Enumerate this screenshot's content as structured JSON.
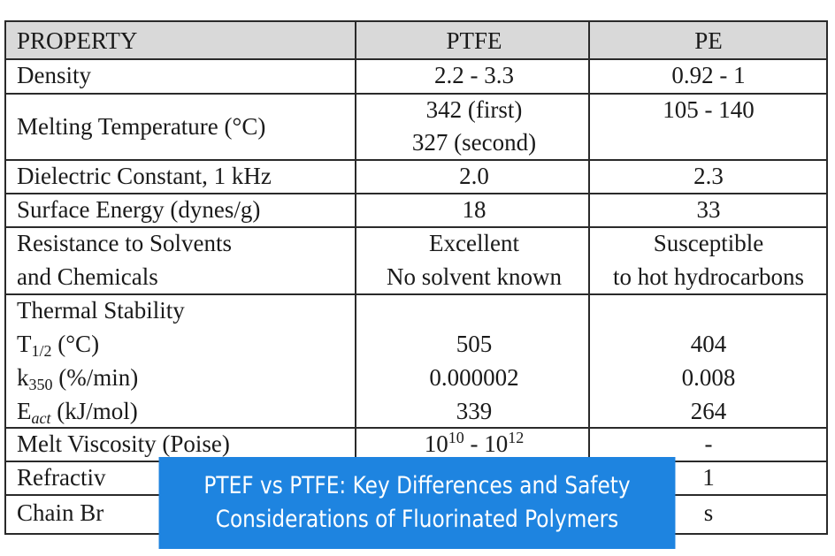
{
  "table": {
    "headers": [
      "PROPERTY",
      "PTFE",
      "PE"
    ],
    "rows": [
      {
        "property": "Density",
        "ptfe": "2.2 - 3.3",
        "pe": "0.92 - 1"
      },
      {
        "property": "Melting Temperature (°C)",
        "ptfe_line1": "342 (first)",
        "ptfe_line2": "327 (second)",
        "pe": "105 - 140"
      },
      {
        "property": "Dielectric Constant, 1 kHz",
        "ptfe": "2.0",
        "pe": "2.3"
      },
      {
        "property": "Surface Energy (dynes/g)",
        "ptfe": "18",
        "pe": "33"
      },
      {
        "property_line1": "Resistance to Solvents",
        "property_line2": "and Chemicals",
        "ptfe_line1": "Excellent",
        "ptfe_line2": "No solvent known",
        "pe_line1": "Susceptible",
        "pe_line2": "to hot hydrocarbons"
      },
      {
        "property": "Thermal Stability"
      },
      {
        "prefix": "T",
        "sub": "1/2",
        "suffix": " (°C)",
        "ptfe": "505",
        "pe": "404"
      },
      {
        "prefix": "k",
        "sub": "350",
        "suffix": " (%/min)",
        "ptfe": "0.000002",
        "pe": "0.008"
      },
      {
        "prefix": "E",
        "sub": "act",
        "suffix": " (kJ/mol)",
        "ptfe": "339",
        "pe": "264"
      },
      {
        "property": "Melt Viscosity (Poise)",
        "ptfe_base1": "10",
        "ptfe_exp1": "10",
        "ptfe_mid": " - ",
        "ptfe_base2": "10",
        "ptfe_exp2": "12",
        "pe": "-"
      },
      {
        "property": "Refractiv",
        "pe": "1"
      },
      {
        "property": "Chain Br",
        "pe": "s"
      }
    ]
  },
  "banner": {
    "line1": "PTEF vs PTFE: Key Differences and Safety",
    "line2": "Considerations of Fluorinated Polymers"
  }
}
